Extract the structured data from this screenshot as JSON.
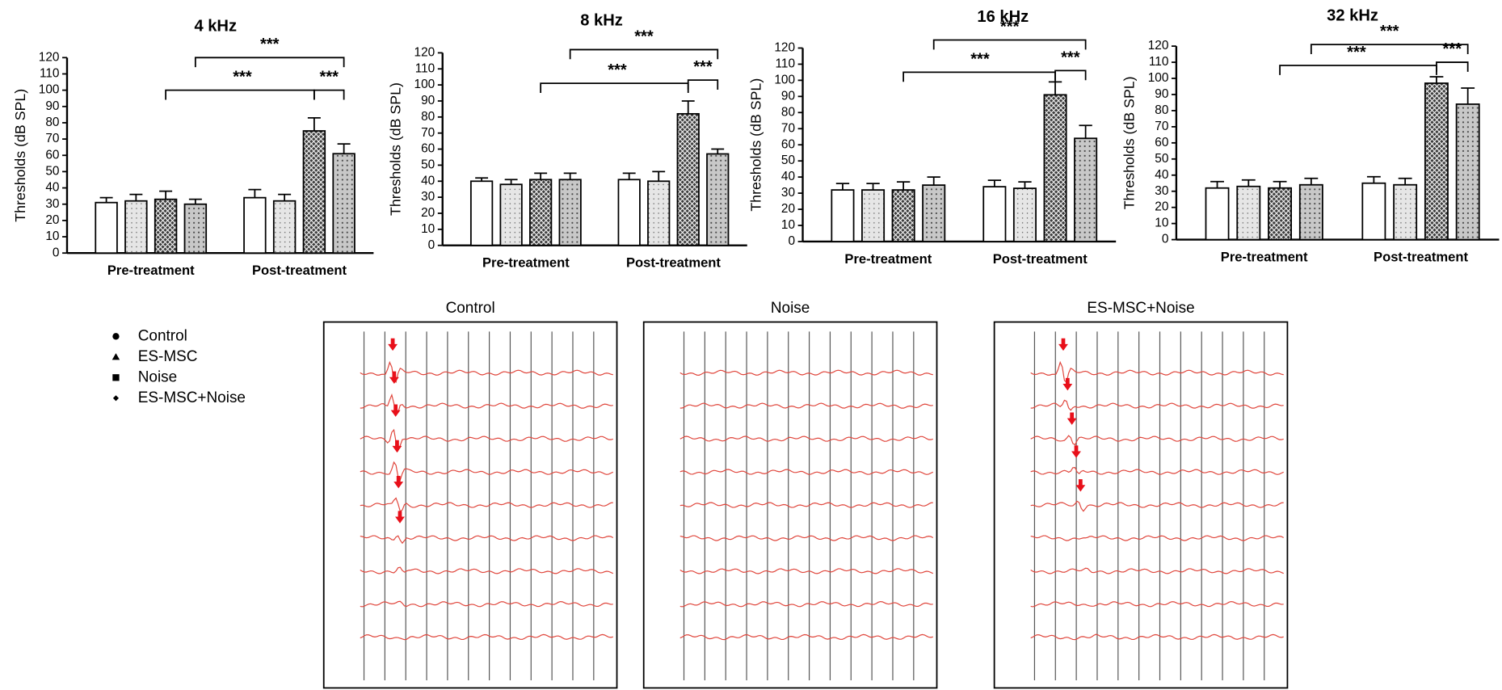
{
  "chart_data": [
    {
      "type": "bar",
      "title": "4 kHz",
      "y_label": "Thresholds (dB SPL)",
      "categories": [
        "Pre-treatment",
        "Post-treatment"
      ],
      "series": [
        {
          "name": "Control",
          "color": "#ffffff",
          "values": [
            31,
            34
          ],
          "errors": [
            3,
            5
          ]
        },
        {
          "name": "ES-MSC",
          "color": "#e6e6e6",
          "values": [
            32,
            32
          ],
          "errors": [
            4,
            4
          ]
        },
        {
          "name": "Noise",
          "color": "#3a3a3a",
          "values": [
            33,
            75
          ],
          "errors": [
            5,
            8
          ]
        },
        {
          "name": "ES-MSC+Noise",
          "color": "#c8c8c8",
          "values": [
            30,
            61
          ],
          "errors": [
            3,
            6
          ]
        }
      ],
      "ylim": [
        0,
        120
      ],
      "yticks": [
        0,
        10,
        20,
        30,
        40,
        50,
        60,
        70,
        80,
        90,
        100,
        110,
        120
      ],
      "annotations": [
        "***",
        "***",
        "***"
      ]
    },
    {
      "type": "bar",
      "title": "8 kHz",
      "y_label": "Thresholds (dB SPL)",
      "categories": [
        "Pre-treatment",
        "Post-treatment"
      ],
      "series": [
        {
          "name": "Control",
          "color": "#ffffff",
          "values": [
            40,
            41
          ],
          "errors": [
            2,
            4
          ]
        },
        {
          "name": "ES-MSC",
          "color": "#e6e6e6",
          "values": [
            38,
            40
          ],
          "errors": [
            3,
            6
          ]
        },
        {
          "name": "Noise",
          "color": "#3a3a3a",
          "values": [
            41,
            82
          ],
          "errors": [
            4,
            8
          ]
        },
        {
          "name": "ES-MSC+Noise",
          "color": "#c8c8c8",
          "values": [
            41,
            57
          ],
          "errors": [
            4,
            3
          ]
        }
      ],
      "ylim": [
        0,
        120
      ],
      "yticks": [
        0,
        10,
        20,
        30,
        40,
        50,
        60,
        70,
        80,
        90,
        100,
        110,
        120
      ],
      "annotations": [
        "***",
        "***",
        "***"
      ]
    },
    {
      "type": "bar",
      "title": "16 kHz",
      "y_label": "Thresholds (dB SPL)",
      "categories": [
        "Pre-treatment",
        "Post-treatment"
      ],
      "series": [
        {
          "name": "Control",
          "color": "#ffffff",
          "values": [
            32,
            34
          ],
          "errors": [
            4,
            4
          ]
        },
        {
          "name": "ES-MSC",
          "color": "#e6e6e6",
          "values": [
            32,
            33
          ],
          "errors": [
            4,
            4
          ]
        },
        {
          "name": "Noise",
          "color": "#3a3a3a",
          "values": [
            32,
            91
          ],
          "errors": [
            5,
            8
          ]
        },
        {
          "name": "ES-MSC+Noise",
          "color": "#c8c8c8",
          "values": [
            35,
            64
          ],
          "errors": [
            5,
            8
          ]
        }
      ],
      "ylim": [
        0,
        120
      ],
      "yticks": [
        0,
        10,
        20,
        30,
        40,
        50,
        60,
        70,
        80,
        90,
        100,
        110,
        120
      ],
      "annotations": [
        "***",
        "***",
        "***"
      ]
    },
    {
      "type": "bar",
      "title": "32 kHz",
      "y_label": "Thresholds (dB SPL)",
      "categories": [
        "Pre-treatment",
        "Post-treatment"
      ],
      "series": [
        {
          "name": "Control",
          "color": "#ffffff",
          "values": [
            32,
            35
          ],
          "errors": [
            4,
            4
          ]
        },
        {
          "name": "ES-MSC",
          "color": "#e6e6e6",
          "values": [
            33,
            34
          ],
          "errors": [
            4,
            4
          ]
        },
        {
          "name": "Noise",
          "color": "#3a3a3a",
          "values": [
            32,
            97
          ],
          "errors": [
            4,
            4
          ]
        },
        {
          "name": "ES-MSC+Noise",
          "color": "#c8c8c8",
          "values": [
            34,
            84
          ],
          "errors": [
            4,
            10
          ]
        }
      ],
      "ylim": [
        0,
        120
      ],
      "yticks": [
        0,
        10,
        20,
        30,
        40,
        50,
        60,
        70,
        80,
        90,
        100,
        110,
        120
      ],
      "annotations": [
        "***",
        "***",
        "***"
      ]
    }
  ],
  "abr_panels": [
    {
      "title": "Control"
    },
    {
      "title": "Noise"
    },
    {
      "title": "ES-MSC+Noise"
    }
  ]
}
